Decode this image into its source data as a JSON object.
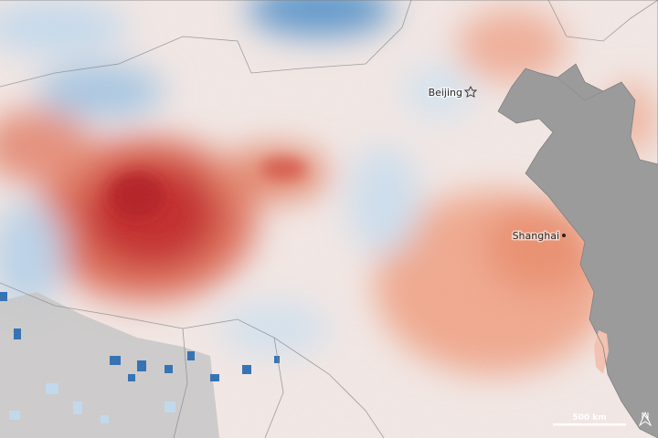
{
  "labels": {
    "beijing": "Beijing",
    "shanghai": "Shanghai"
  },
  "scale_bar": {
    "label": "500 km"
  }
}
